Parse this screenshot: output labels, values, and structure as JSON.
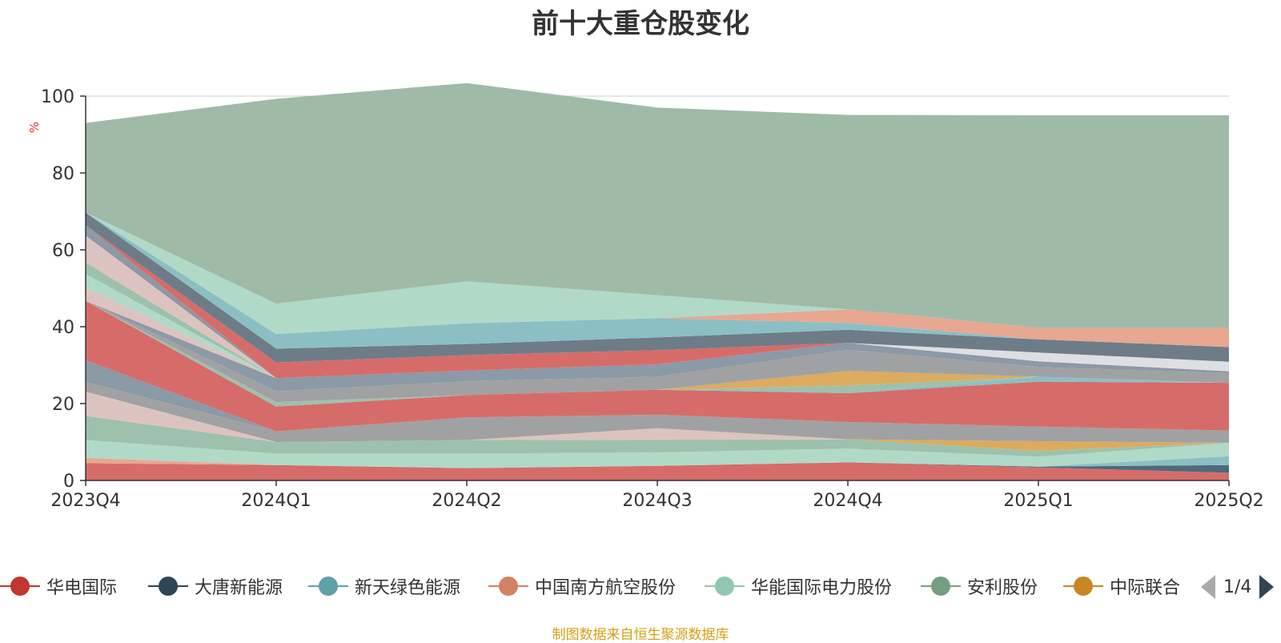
{
  "title": "前十大重仓股变化",
  "unit_label": "%",
  "source_note": "制图数据来自恒生聚源数据库",
  "pager": {
    "text": "1/4"
  },
  "legend": [
    {
      "name": "华电国际",
      "color": "#c23531"
    },
    {
      "name": "大唐新能源",
      "color": "#2f4554"
    },
    {
      "name": "新天绿色能源",
      "color": "#61a0a8"
    },
    {
      "name": "中国南方航空股份",
      "color": "#d48265"
    },
    {
      "name": "华能国际电力股份",
      "color": "#91c7ae"
    },
    {
      "name": "安利股份",
      "color": "#749f83"
    },
    {
      "name": "中际联合",
      "color": "#ca8622"
    }
  ],
  "chart_data": {
    "type": "area",
    "stacked": true,
    "categories": [
      "2023Q4",
      "2024Q1",
      "2024Q2",
      "2024Q3",
      "2024Q4",
      "2025Q1",
      "2025Q2"
    ],
    "ylim": [
      0,
      100
    ],
    "yticks": [
      0,
      20,
      40,
      60,
      80,
      100
    ],
    "grid": true,
    "layers": [
      {
        "color": "#d66c69",
        "values": [
          4.5,
          4,
          3.2,
          3.8,
          4.7,
          3.4,
          2
        ]
      },
      {
        "color": "#4e6a7a",
        "values": [
          0,
          0,
          0,
          0,
          0,
          0.2,
          2
        ]
      },
      {
        "color": "#8bbfc4",
        "values": [
          0,
          0,
          0,
          0,
          0,
          0,
          2.3
        ]
      },
      {
        "color": "#e7a791",
        "values": [
          1.4,
          0,
          0,
          0,
          0,
          0,
          0
        ]
      },
      {
        "color": "#b0d9c8",
        "values": [
          4.6,
          3,
          3.8,
          3.5,
          3.6,
          2.6,
          3.5
        ]
      },
      {
        "color": "#9dc1ad",
        "values": [
          6.3,
          3,
          3.5,
          3.3,
          2.4,
          1.5,
          0
        ]
      },
      {
        "color": "#dcab5e",
        "values": [
          0,
          0,
          0,
          0,
          0,
          2.5,
          0
        ]
      },
      {
        "color": "#ddc3bf",
        "values": [
          6.3,
          0,
          0,
          3,
          0,
          0,
          0
        ]
      },
      {
        "color": "#a0a1a3",
        "values": [
          2.5,
          2.8,
          5.9,
          3.5,
          4.5,
          3.8,
          3.2
        ]
      },
      {
        "color": "#8c99a6",
        "values": [
          5.7,
          0,
          0,
          0,
          0,
          0,
          0
        ]
      },
      {
        "color": "#d66c69",
        "values": [
          15.4,
          6.4,
          5.8,
          6.5,
          7.5,
          11.7,
          12.4
        ]
      },
      {
        "color": "#8bbfc4",
        "values": [
          0,
          0,
          0,
          0,
          0,
          1.3,
          0
        ]
      },
      {
        "color": "#9dc1ad",
        "values": [
          0,
          1.2,
          0,
          0,
          2,
          0,
          0
        ]
      },
      {
        "color": "#dcab5e",
        "values": [
          0,
          0,
          0,
          0,
          3.8,
          0,
          0
        ]
      },
      {
        "color": "#a0a1a3",
        "values": [
          0,
          2.8,
          3.6,
          3.4,
          5.5,
          2.5,
          2.5
        ]
      },
      {
        "color": "#8c99a6",
        "values": [
          0,
          3.4,
          2.8,
          3.2,
          1.8,
          1.5,
          0.5
        ]
      },
      {
        "color": "#d66c69",
        "values": [
          0,
          0,
          0,
          0,
          0,
          0,
          0
        ]
      },
      {
        "color": "#dedfe3",
        "values": [
          0,
          0,
          0,
          0,
          0,
          2.3,
          2.5
        ]
      },
      {
        "color": "#ddc3bf",
        "values": [
          3.5,
          0,
          0,
          0,
          0,
          0,
          0
        ]
      },
      {
        "color": "#b0d9c8",
        "values": [
          3.5,
          0,
          0,
          0,
          0,
          0,
          0
        ]
      },
      {
        "color": "#9dc1ad",
        "values": [
          3,
          0,
          0,
          0,
          0,
          0,
          0
        ]
      },
      {
        "color": "#ddc3bf",
        "values": [
          7,
          0,
          0,
          0,
          0,
          0,
          0
        ]
      },
      {
        "color": "#8c99a6",
        "values": [
          2.7,
          0,
          0,
          0,
          0,
          0,
          0
        ]
      },
      {
        "color": "#d66c69",
        "values": [
          0,
          4.1,
          4,
          3.7,
          0,
          0,
          0
        ]
      },
      {
        "color": "#6e7c88",
        "values": [
          3.3,
          3.6,
          2.9,
          3.3,
          3.4,
          3.4,
          3.8
        ]
      },
      {
        "color": "#8bbfc4",
        "values": [
          0,
          3.8,
          5.4,
          5,
          1.8,
          0,
          0
        ]
      },
      {
        "color": "#e7a791",
        "values": [
          0,
          0,
          0,
          0,
          3.5,
          3,
          5
        ]
      },
      {
        "color": "#b0d9c8",
        "values": [
          0,
          7.9,
          10.9,
          6,
          0,
          0,
          0
        ]
      },
      {
        "color": "#9fbba8",
        "values": [
          23.3,
          53.3,
          51.6,
          48.8,
          50.6,
          55.3,
          55.3
        ]
      }
    ]
  }
}
